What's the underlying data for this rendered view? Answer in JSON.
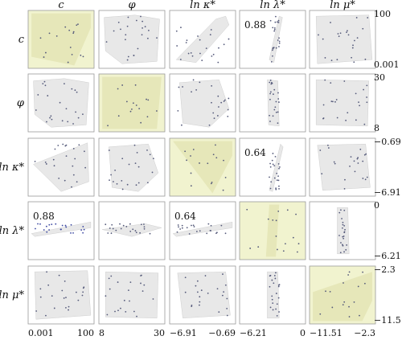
{
  "chart_data": {
    "type": "scatter",
    "variables": [
      "c",
      "φ",
      "ln κ*",
      "ln λ*",
      "ln μ*"
    ],
    "x_ticks": [
      [
        "0.001",
        "100"
      ],
      [
        "8",
        "30"
      ],
      [
        "−6.91",
        "−0.69"
      ],
      [
        "−6.21",
        "0"
      ],
      [
        "−11.51",
        "−2.3"
      ]
    ],
    "y_ticks": [
      [
        "100",
        "0.001"
      ],
      [
        "30",
        "8"
      ],
      [
        "−0.69",
        "−6.91"
      ],
      [
        "0",
        "−6.21"
      ],
      [
        "−2.3",
        "−11.51"
      ]
    ],
    "correlation_labels": [
      {
        "row": 0,
        "col": 3,
        "text": "0.88"
      },
      {
        "row": 2,
        "col": 3,
        "text": "0.64"
      },
      {
        "row": 3,
        "col": 0,
        "text": "0.88"
      },
      {
        "row": 3,
        "col": 2,
        "text": "0.64"
      }
    ],
    "colors": {
      "hull_fill": "#e8e8e8",
      "diag_fill": "#f1f3cf",
      "diag_hull": "#e6e7b9",
      "point": "#555a7a",
      "point_highlight": "#3a46a0",
      "frame": "#9a9a9a"
    }
  }
}
